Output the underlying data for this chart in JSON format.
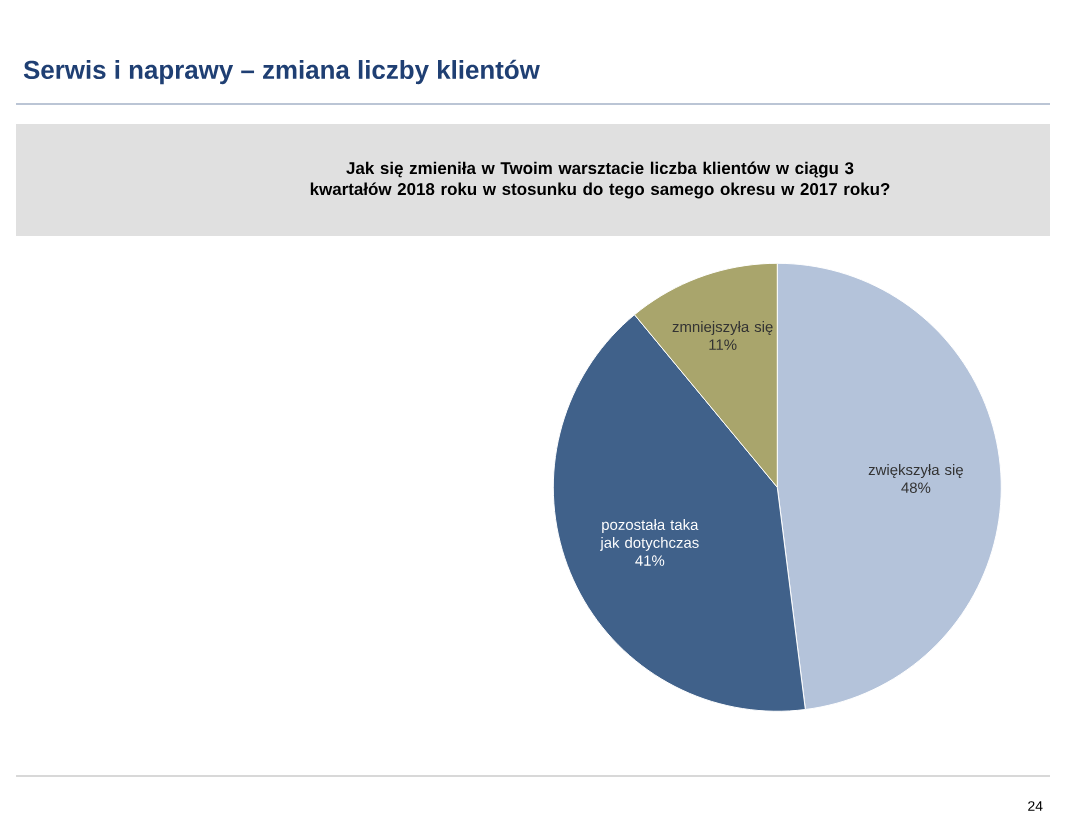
{
  "chart_data": {
    "type": "pie",
    "title": "Serwis i naprawy – zmiana liczby klientów",
    "subtitle": "Jak się zmieniła w Twoim warsztacie liczba klientów w ciągu 3 kwartałów 2018 roku w stosunku do tego samego okresu w 2017 roku?",
    "categories": [
      "zwiększyła się",
      "pozostała taka jak dotychczas",
      "zmniejszyła się"
    ],
    "values": [
      48,
      41,
      11
    ],
    "colors": [
      "#b4c3da",
      "#40618a",
      "#a9a56c"
    ],
    "value_labels": [
      "48%",
      "41%",
      "11%"
    ],
    "annotations": [
      "24"
    ]
  }
}
